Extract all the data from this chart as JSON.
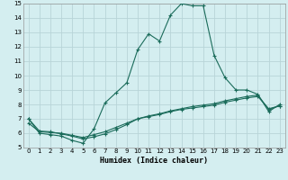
{
  "xlabel": "Humidex (Indice chaleur)",
  "bg_color": "#d4eef0",
  "grid_color": "#b8d4d8",
  "line_color": "#1a6b5a",
  "xlim": [
    -0.5,
    23.5
  ],
  "ylim": [
    5,
    15
  ],
  "xticks": [
    0,
    1,
    2,
    3,
    4,
    5,
    6,
    7,
    8,
    9,
    10,
    11,
    12,
    13,
    14,
    15,
    16,
    17,
    18,
    19,
    20,
    21,
    22,
    23
  ],
  "yticks": [
    5,
    6,
    7,
    8,
    9,
    10,
    11,
    12,
    13,
    14,
    15
  ],
  "line1_x": [
    0,
    1,
    2,
    3,
    4,
    5,
    6,
    7,
    8,
    9,
    10,
    11,
    12,
    13,
    14,
    15,
    16,
    17,
    18,
    19,
    20,
    21,
    22,
    23
  ],
  "line1_y": [
    7.0,
    6.0,
    5.9,
    5.8,
    5.5,
    5.3,
    6.3,
    8.1,
    8.8,
    9.5,
    11.8,
    12.9,
    12.4,
    14.2,
    15.0,
    14.85,
    14.85,
    11.4,
    9.85,
    9.0,
    9.0,
    8.7,
    7.5,
    8.0
  ],
  "line2_x": [
    0,
    1,
    2,
    3,
    4,
    5,
    6,
    7,
    8,
    9,
    10,
    11,
    12,
    13,
    14,
    15,
    16,
    17,
    18,
    19,
    20,
    21,
    22,
    23
  ],
  "line2_y": [
    6.7,
    6.1,
    6.05,
    6.0,
    5.85,
    5.7,
    5.9,
    6.1,
    6.4,
    6.7,
    7.0,
    7.2,
    7.35,
    7.55,
    7.7,
    7.85,
    7.95,
    8.05,
    8.25,
    8.4,
    8.55,
    8.65,
    7.65,
    7.9
  ],
  "line3_x": [
    0,
    1,
    2,
    3,
    4,
    5,
    6,
    7,
    8,
    9,
    10,
    11,
    12,
    13,
    14,
    15,
    16,
    17,
    18,
    19,
    20,
    21,
    22,
    23
  ],
  "line3_y": [
    7.0,
    6.15,
    6.1,
    5.95,
    5.8,
    5.6,
    5.75,
    5.95,
    6.25,
    6.6,
    7.0,
    7.15,
    7.3,
    7.5,
    7.65,
    7.75,
    7.85,
    7.95,
    8.15,
    8.3,
    8.45,
    8.55,
    7.7,
    7.9
  ]
}
